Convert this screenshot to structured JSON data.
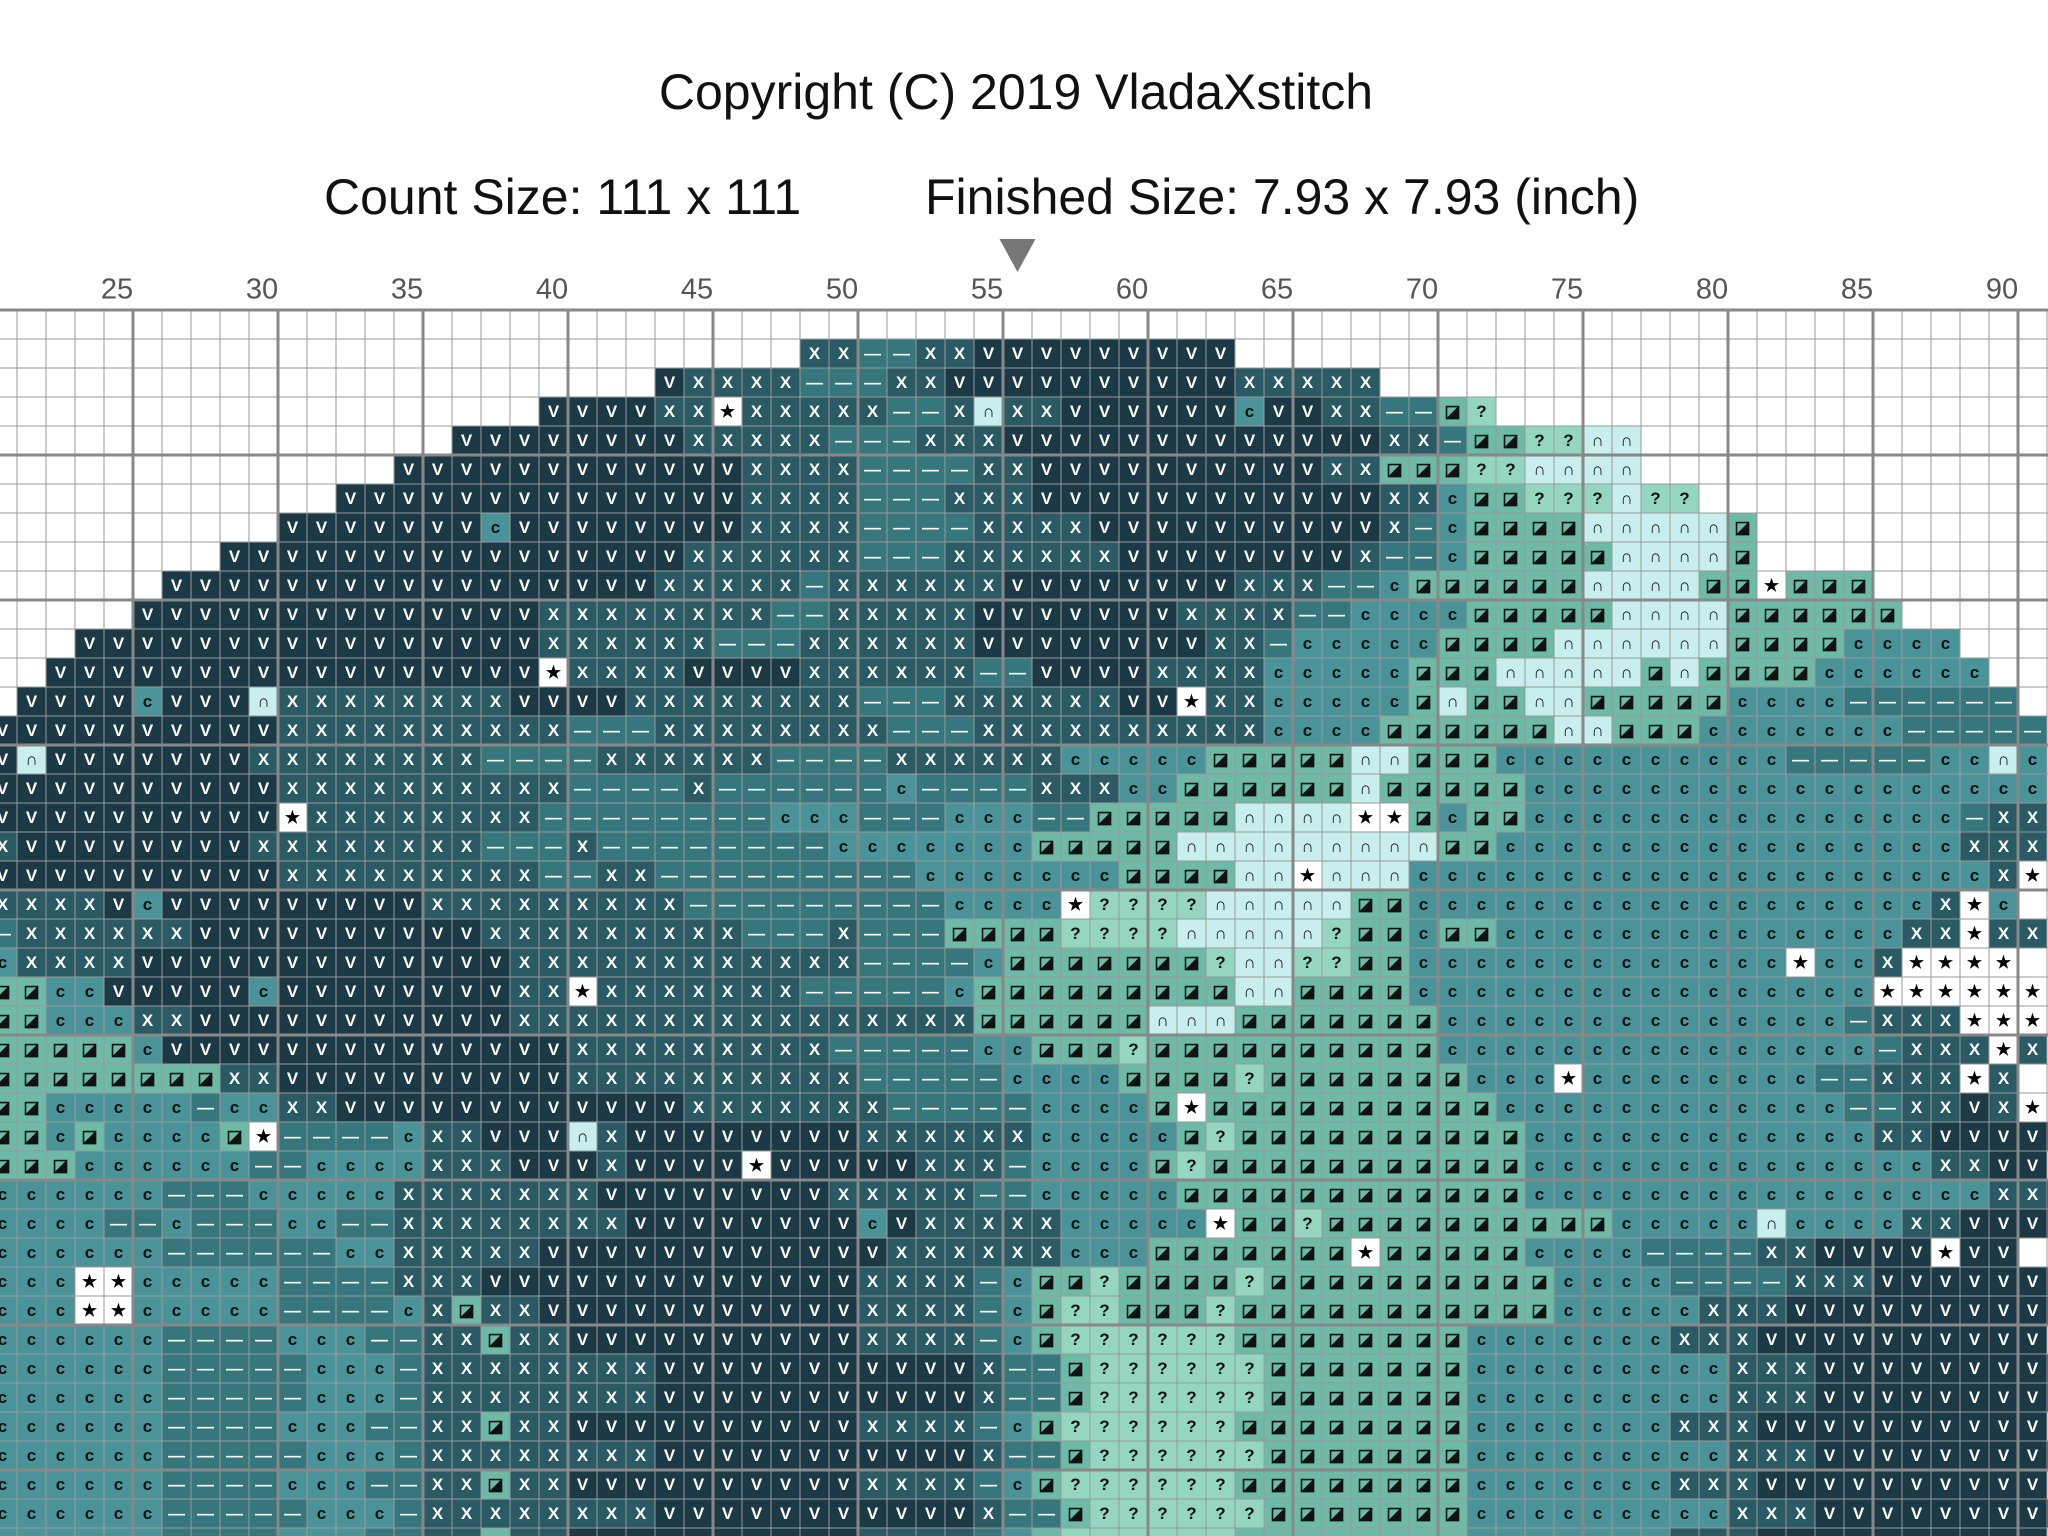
{
  "header": {
    "copyright": "Copyright (C) 2019 VladaXstitch",
    "count_size": "Count Size: 111 x 111",
    "finished_size": "Finished Size: 7.93 x 7.93 (inch)"
  },
  "ruler": {
    "columns": [
      25,
      30,
      35,
      40,
      45,
      50,
      55,
      60,
      65,
      70,
      75,
      80,
      85,
      90
    ],
    "first_column": 21,
    "center_column": 56
  },
  "pattern": {
    "key": {
      ".": {
        "color": "#ffffff"
      },
      "V": {
        "symbol": "V",
        "color": "#1b3a46",
        "ink": "#ffffff"
      },
      "X": {
        "symbol": "X",
        "color": "#2a5a64",
        "ink": "#ffffff"
      },
      "-": {
        "symbol": "—",
        "color": "#35777d",
        "ink": "#ffffff"
      },
      "c": {
        "symbol": "c",
        "color": "#4a9398",
        "ink": "#111111"
      },
      "s": {
        "symbol": "◪",
        "color": "#6dbba7",
        "ink": "#111111"
      },
      "?": {
        "symbol": "?",
        "color": "#94d6bf",
        "ink": "#111111"
      },
      "n": {
        "symbol": "∩",
        "color": "#c8eeee",
        "ink": "#111111"
      },
      "*": {
        "symbol": "★",
        "color": "#ffffff",
        "ink": "#000000"
      }
    },
    "rows": [
      ".......................................................................",
      "............................XX--XXVVVVVVVVV............................",
      ".......................VXXXX---XXVVVVVVVVVVXXXXX.......................",
      "...................VVVVXX*XXXXX--XnXXVVVVVVcVVXX--s?...................",
      "................VVVVVVVVXXXXX---XXXVVVVVVVVVVVVVXX-ss??nn..............",
      "..............VVVVVVVVVVVVXXXX----XXVVVVVVVVVVXXsss??nnnn..............",
      "............VVVVVVVVVVVVVVXXXX---XXXVVVVVVVVVVVVXXcss???n??............",
      "..........VVVVVVVcVVVVVVVVXXXX----XXXXVVVVVVVVVVX-cssssnnnnns..........",
      "........VVVVVVVVVVVVVVVVXXXXXX---XXXXXXVVVVVVVVX--csssssnnnns..........",
      "......VVVVVVVVVVVVVVVVVXXXXX-XXXXXXVVVVVVVVXXX--cssssssnnnnss*sss......",
      ".....VVVVVVVVVVVVVVXXXXXXXX--XXXXXVVVVVVVXXXX--ccccsssssnnnnssssss.....",
      "...VVVVVVVVVVVVVVVVXXXXXX---XXXXXXVVVVVVVVXX-cccccssssnnnnnnsssscccc...",
      "..VVVVVVVVVVVVVVVVV*XXXXVVVVXXXXXX--VVVVXXXXcccccsssnnnnnsnsssscccccc...",
      ".VVVVcVVVnXXXXXXXXVVVVXXXXXXXX---XXXXXXVV*XXcccccsnssnnssssscccc------.",
      "VVVVVVVVVVXXXXXXXXXX---XXXXXXXX---XXXXXXXXXXccccssssssnnsssccccccc-----",
      "VnVVVVVVVXXXXXXXX----XXXXXX----XXXXXXcccccsssssnnssscccccccccc-----ccnc",
      "VVVVVVVVVVXXXXXXXXXX----X------c----XXXccssssssnssssscccccccccccccccccc",
      "VVVVVVVVVV*XXXXXXXX--------ccc---ccc--sssssnnnn**scssccccccccccccccc-XX",
      "XVVVVVVVVXXXXXXXX---X--------cccccccsssssnnnnnnnnnssccccccccccccccccXXX",
      "VVVVVVVVVVXXXXXXXXX--XX---------cccccccssssnn*nnnccccccccccccccccccccX*",
      "XXXXVcVVVVVVVVVXXXXXXXXX---------cccc*????nnnnnssccccccccccccccccccX*c",
      "-XXXXXXVVVVVVVVVVXXXXXXXXX---X---ssss????nnnnn?sscssccccccccccccccXX*XX",
      "cXXXXVVVVVVVVVVVVVXXXXXXXXXXXX----csssssss?nn??ssccccccccccccc*ccX****",
      "ssccVVVVVcVVVVVVVVXX*XXXXXXX-----csssssssssnnsssscccccccccccccccc******",
      "sscccXXVVVVVVVVVVVXXXXXXXXXXXXXXXXssssssnnnssssssscccccccccccccc-XXX***",
      "ssssscVVVVVVVVVVVVVVXXXXXXXXX-----ccsss?ssssssssssccccccccccccccc-XXX*X",
      "ssssssssXXVVVVVVVVVVXXXXXXXXXX-----ccccssss?sssssssccc*cccccccc--XXX*X",
      "ssccccc-ccXXVVVVVVVVVVVVXXXXXXX-----ccccs*sssssssssscccccccccccc--XXVX*",
      "sscsccccs*----cXXVVVnXVVVVVVVVXXXXXXcccccs?ssssssssssccccccccccccXXVVVVV",
      "ssscccccc--ccccXXXVVVXVVVV*VVVVVXXX-ccccs?sssssssssssccccccccccccccXXVV",
      "cccccc---cccccXXXXXXXVVVVVVVVXXXXX--cccccssssssssssssccccccccccccccccXXV",
      "cccc--c---cc--XXXXXXXXVVVVVVVVcVXXXXXccccc*ss?sssssssssscccccnccccXXVVVVV",
      "cccccc------ccXXXXXVVVVVVVVVVVVXXXXXXcccsssssss*ssssscccc----XXVVVV*VV",
      "ccc**ccccc----XXXVVVVVVVVVVVVVXXXX-css?ssss?sssssssssscccc----XXXVVVVVVV",
      "ccc**ccccc----cXsXXVVVVVVVVVVVXXXX-cs??sss?ssssssssssscccccXXXVVVVVVVVVV",
      "cccccc----ccc--XXsXXVVVVVVVVVVXXXX-cs??????sssssssscccccccXXXVVVVVVVVVV",
      "cccccc-----ccc-XXXXXXXXVVVVVVVVVVVX--s??????ssssssscccccccccXXXVVVVVVVVV",
      "cccccc-----ccc-XXXXXXXXVVVVVVVVVVVX--s??????ssssssscccccccccXXXVVVVVVVVV",
      "cccccc----ccc--XXsXXVVVVVVVVVVXXXX-cs??????sssssssscccccccXXXVVVVVVVVVV",
      "cccccc-----ccc-XXXXXXXXVVVVVVVVVVVX--s??????ssssssscccccccccXXXVVVVVVVVV",
      "cccccc----ccc--XXsXXVVVVVVVVVVXXXX-cs??????sssssssscccccccXXXVVVVVVVVVV",
      "cccccc-----ccc-XXXXXXXXVVVVVVVVVVVX--s??????ssssssscccccccccXXXVVVVVVVVV",
      "cccccc----ccc--XXsXXVVVVVVVVVVXXXX-cs??????sssssssscccccccXXXVVVVVVVVVV"
    ]
  }
}
